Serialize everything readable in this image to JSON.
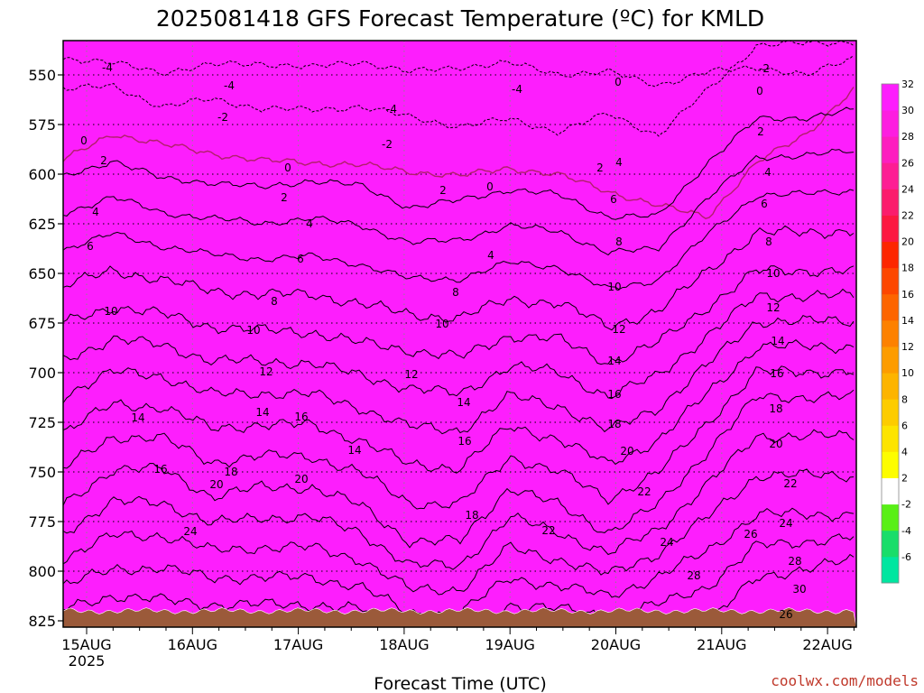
{
  "chart_data": {
    "type": "heatmap",
    "title": "2025081418 GFS Forecast Temperature (ºC) for KMLD",
    "xlabel": "Forecast Time (UTC)",
    "ylabel": "",
    "x_tick_labels": [
      "15AUG",
      "16AUG",
      "17AUG",
      "18AUG",
      "19AUG",
      "20AUG",
      "21AUG",
      "22AUG"
    ],
    "x_year_label": "2025",
    "y_ticks": [
      550,
      575,
      600,
      625,
      650,
      675,
      700,
      725,
      750,
      775,
      800,
      825
    ],
    "y_axis_units": "hPa",
    "ylim": [
      838,
      540
    ],
    "y_inverted": true,
    "contour_interval": 2,
    "colorbar_levels": [
      -6,
      -4,
      -2,
      2,
      4,
      6,
      8,
      10,
      12,
      14,
      16,
      18,
      20,
      22,
      24,
      26,
      28,
      30,
      32
    ],
    "colorbar_colors": [
      "#00e6a0",
      "#19dd6a",
      "#59ef16",
      "#ffffff",
      "#fdfd00",
      "#fde400",
      "#fdcc00",
      "#fdb400",
      "#fd9c00",
      "#fd8100",
      "#fd6500",
      "#fd4700",
      "#fd2600",
      "#fc1840",
      "#fb1c6c",
      "#fd1e94",
      "#fd1ebf",
      "#fd1ee0",
      "#fd1efd"
    ],
    "series": [
      {
        "x_day": [
          0.0,
          0.25,
          0.5,
          0.75,
          1.0,
          1.25,
          1.5,
          1.75,
          2.0,
          2.25,
          2.5,
          2.75,
          3.0,
          3.25,
          3.5,
          3.75,
          4.0,
          4.25,
          4.5,
          4.75,
          5.0,
          5.25,
          5.5,
          5.75,
          6.0,
          6.25,
          6.5,
          6.75,
          7.0,
          7.25,
          7.5
        ],
        "p_of_minus4C": [
          558,
          560,
          558,
          557,
          556,
          557,
          558,
          559,
          560,
          561,
          562,
          563,
          566,
          567,
          565,
          563,
          564,
          565,
          566,
          556,
          542,
          541,
          541,
          541,
          542,
          541,
          541,
          541,
          541,
          541,
          541
        ],
        "p_of_0C": [
          585,
          583,
          586,
          588,
          590,
          589,
          586,
          587,
          589,
          592,
          595,
          596,
          596,
          594,
          590,
          592,
          597,
          585,
          580,
          570,
          555,
          560,
          564,
          562,
          563,
          565,
          564,
          562,
          561,
          560,
          558
        ]
      },
      {
        "x_day": [
          0.0,
          0.5,
          1.0,
          1.5,
          2.0,
          2.5,
          3.0,
          3.5,
          4.0,
          4.5,
          5.0,
          5.5,
          6.0,
          6.5,
          7.0,
          7.5
        ],
        "p_of_2C": [
          605,
          598,
          602,
          598,
          600,
          603,
          607,
          604,
          609,
          600,
          592,
          578,
          583,
          583,
          583,
          583
        ],
        "p_of_10C": [
          675,
          668,
          676,
          675,
          673,
          681,
          685,
          674,
          686,
          671,
          668,
          650,
          650,
          650,
          650,
          650
        ],
        "p_of_20C": [
          780,
          771,
          780,
          779,
          778,
          789,
          797,
          786,
          806,
          780,
          745,
          725,
          725,
          725,
          725,
          725
        ]
      }
    ]
  },
  "contour_labels": [
    {
      "value": "-4"
    },
    {
      "value": "-4"
    },
    {
      "value": "-4"
    },
    {
      "value": "-4"
    },
    {
      "value": "-2"
    },
    {
      "value": "-2"
    },
    {
      "value": "-2"
    },
    {
      "value": "0"
    },
    {
      "value": "0"
    },
    {
      "value": "0"
    },
    {
      "value": "0"
    },
    {
      "value": "0"
    },
    {
      "value": "2"
    },
    {
      "value": "2"
    },
    {
      "value": "2"
    },
    {
      "value": "2"
    },
    {
      "value": "2"
    },
    {
      "value": "4"
    },
    {
      "value": "4"
    },
    {
      "value": "4"
    },
    {
      "value": "4"
    },
    {
      "value": "4"
    },
    {
      "value": "6"
    },
    {
      "value": "6"
    },
    {
      "value": "6"
    },
    {
      "value": "6"
    },
    {
      "value": "8"
    },
    {
      "value": "8"
    },
    {
      "value": "8"
    },
    {
      "value": "8"
    },
    {
      "value": "10"
    },
    {
      "value": "10"
    },
    {
      "value": "10"
    },
    {
      "value": "10"
    },
    {
      "value": "10"
    },
    {
      "value": "12"
    },
    {
      "value": "12"
    },
    {
      "value": "12"
    },
    {
      "value": "12"
    },
    {
      "value": "14"
    },
    {
      "value": "14"
    },
    {
      "value": "14"
    },
    {
      "value": "14"
    },
    {
      "value": "14"
    },
    {
      "value": "14"
    },
    {
      "value": "16"
    },
    {
      "value": "16"
    },
    {
      "value": "16"
    },
    {
      "value": "16"
    },
    {
      "value": "16"
    },
    {
      "value": "18"
    },
    {
      "value": "18"
    },
    {
      "value": "18"
    },
    {
      "value": "18"
    },
    {
      "value": "20"
    },
    {
      "value": "20"
    },
    {
      "value": "20"
    },
    {
      "value": "20"
    },
    {
      "value": "22"
    },
    {
      "value": "22"
    },
    {
      "value": "22"
    },
    {
      "value": "24"
    },
    {
      "value": "24"
    },
    {
      "value": "24"
    },
    {
      "value": "26"
    },
    {
      "value": "26"
    },
    {
      "value": "28"
    },
    {
      "value": "28"
    },
    {
      "value": "30"
    }
  ],
  "credit": "coolwx.com/models",
  "ground_color": "#9b5a3a"
}
